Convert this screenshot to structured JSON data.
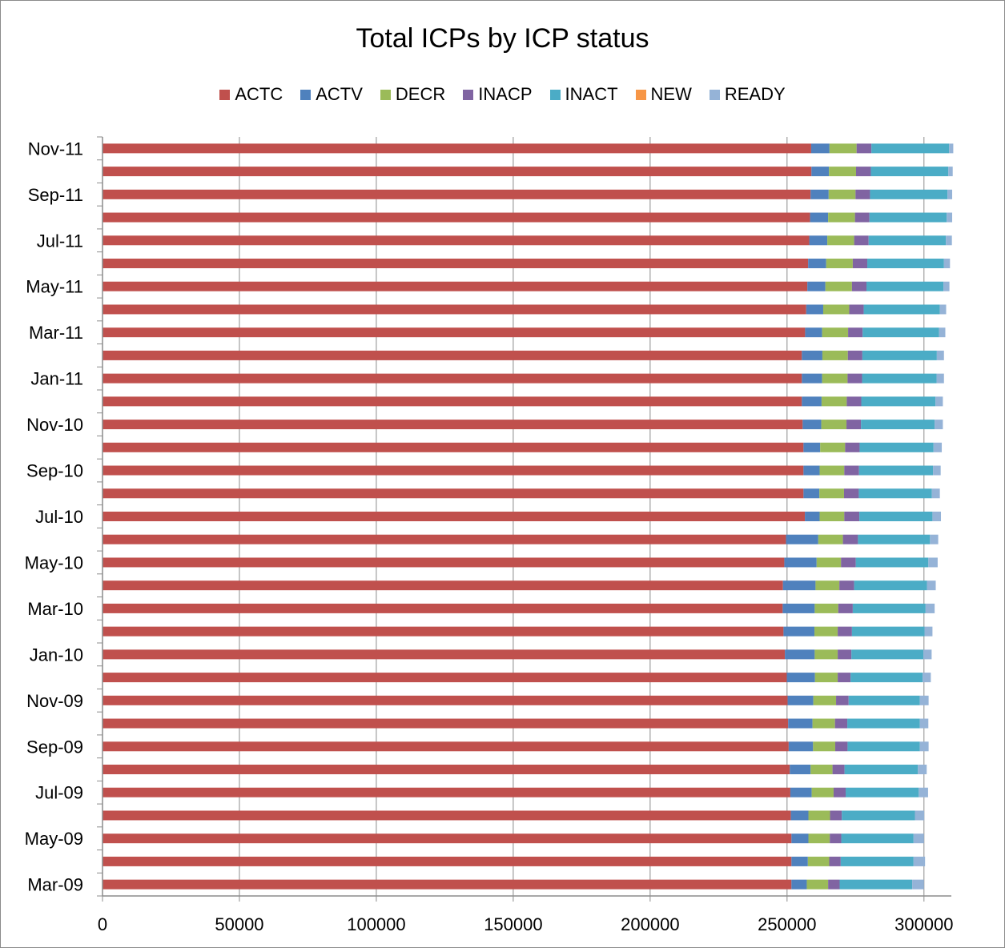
{
  "chart_data": {
    "type": "bar",
    "orientation": "horizontal",
    "stacked": true,
    "title": "Total ICPs by ICP status",
    "xlabel": "",
    "ylabel": "",
    "xlim": [
      0,
      310000
    ],
    "x_ticks": [
      0,
      50000,
      100000,
      150000,
      200000,
      250000,
      300000
    ],
    "grid": "vertical",
    "legend_position": "top",
    "categories": [
      "Mar-09",
      "Apr-09",
      "May-09",
      "Jun-09",
      "Jul-09",
      "Aug-09",
      "Sep-09",
      "Oct-09",
      "Nov-09",
      "Dec-09",
      "Jan-10",
      "Feb-10",
      "Mar-10",
      "Apr-10",
      "May-10",
      "Jun-10",
      "Jul-10",
      "Aug-10",
      "Sep-10",
      "Oct-10",
      "Nov-10",
      "Dec-10",
      "Jan-11",
      "Feb-11",
      "Mar-11",
      "Apr-11",
      "May-11",
      "Jun-11",
      "Jul-11",
      "Aug-11",
      "Sep-11",
      "Oct-11",
      "Nov-11"
    ],
    "category_labels_shown": [
      "Mar-09",
      "",
      "May-09",
      "",
      "Jul-09",
      "",
      "Sep-09",
      "",
      "Nov-09",
      "",
      "Jan-10",
      "",
      "Mar-10",
      "",
      "May-10",
      "",
      "Jul-10",
      "",
      "Sep-10",
      "",
      "Nov-10",
      "",
      "Jan-11",
      "",
      "Mar-11",
      "",
      "May-11",
      "",
      "Jul-11",
      "",
      "Sep-11",
      "",
      "Nov-11"
    ],
    "series": [
      {
        "name": "ACTC",
        "color": "#c0504d",
        "values": [
          251600,
          251600,
          251600,
          251400,
          251200,
          251000,
          250600,
          250400,
          250200,
          249900,
          249200,
          248700,
          248400,
          248500,
          249000,
          249600,
          256500,
          256000,
          256000,
          256000,
          255700,
          255400,
          255400,
          255400,
          256600,
          257000,
          257400,
          257700,
          258100,
          258400,
          258600,
          258900,
          258800
        ]
      },
      {
        "name": "ACTV",
        "color": "#4f81bd",
        "values": [
          5600,
          6000,
          6200,
          6400,
          7800,
          7600,
          8900,
          8900,
          9400,
          10300,
          10900,
          11300,
          11700,
          11900,
          11800,
          11800,
          5400,
          5800,
          5900,
          6100,
          6800,
          7200,
          7400,
          7500,
          6200,
          6200,
          6600,
          6600,
          6600,
          6600,
          6600,
          6400,
          6700
        ]
      },
      {
        "name": "DECR",
        "color": "#9bbb59",
        "values": [
          7800,
          7800,
          7800,
          7900,
          8000,
          8000,
          8100,
          8200,
          8300,
          8300,
          8400,
          8500,
          8600,
          8700,
          8900,
          9000,
          9000,
          9000,
          9000,
          9100,
          9200,
          9200,
          9300,
          9300,
          9500,
          9500,
          9700,
          9700,
          9800,
          9800,
          9800,
          9900,
          9900
        ]
      },
      {
        "name": "INACP",
        "color": "#8064a2",
        "values": [
          4200,
          4200,
          4200,
          4300,
          4400,
          4400,
          4500,
          4500,
          4600,
          4700,
          5000,
          5200,
          5300,
          5400,
          5400,
          5500,
          5500,
          5400,
          5400,
          5300,
          5300,
          5300,
          5300,
          5300,
          5300,
          5300,
          5300,
          5300,
          5300,
          5300,
          5300,
          5400,
          5400
        ]
      },
      {
        "name": "INACT",
        "color": "#4bacc6",
        "values": [
          26500,
          26600,
          26400,
          26700,
          26700,
          26800,
          26400,
          26500,
          26000,
          26300,
          26300,
          26500,
          26600,
          26600,
          26500,
          26300,
          26700,
          26700,
          27000,
          27000,
          26900,
          27100,
          27200,
          27200,
          27900,
          27800,
          28100,
          28000,
          28200,
          28200,
          28300,
          28300,
          28400
        ]
      },
      {
        "name": "NEW",
        "color": "#f79646",
        "values": [
          0,
          0,
          0,
          0,
          0,
          0,
          0,
          0,
          0,
          0,
          0,
          0,
          0,
          0,
          0,
          0,
          0,
          0,
          0,
          0,
          0,
          0,
          0,
          0,
          0,
          0,
          0,
          0,
          0,
          0,
          0,
          0,
          0
        ]
      },
      {
        "name": "READY",
        "color": "#95b3d7",
        "values": [
          4300,
          4200,
          3800,
          3400,
          3400,
          3200,
          3200,
          3100,
          3200,
          3000,
          3000,
          2900,
          3300,
          3200,
          3400,
          3000,
          3100,
          2900,
          2800,
          3000,
          3000,
          2700,
          2700,
          2600,
          2300,
          2300,
          2200,
          2200,
          2200,
          2000,
          1700,
          1600,
          1500
        ]
      }
    ]
  }
}
